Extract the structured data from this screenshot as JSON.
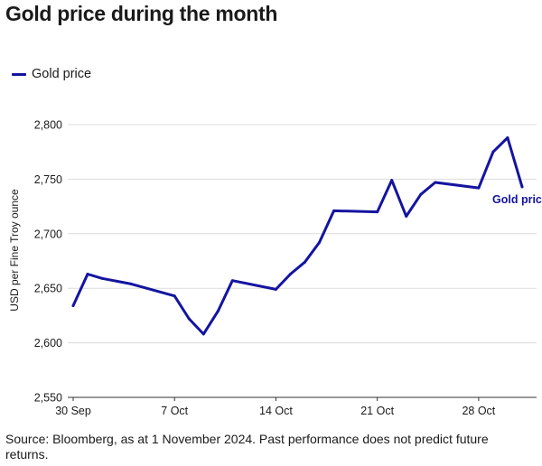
{
  "title": "Gold price during the month",
  "source": "Source: Bloomberg, as at 1 November 2024. Past performance does not predict future returns.",
  "colors": {
    "series": "#1414a0",
    "grid": "#dcdcdc",
    "axis": "#333333",
    "text": "#1a1a1a"
  },
  "chart_data": {
    "type": "line",
    "title": "Gold price during the month",
    "xlabel": "",
    "ylabel": "USD per Fine Troy ounce",
    "ylim": [
      2550,
      2800
    ],
    "yticks": [
      2550,
      2600,
      2650,
      2700,
      2750,
      2800
    ],
    "ytick_labels": [
      "2,550",
      "2,600",
      "2,650",
      "2,700",
      "2,750",
      "2,800"
    ],
    "xlim": [
      "2024-09-30",
      "2024-11-01"
    ],
    "xticks": [
      "2024-09-30",
      "2024-10-07",
      "2024-10-14",
      "2024-10-21",
      "2024-10-28"
    ],
    "xtick_labels": [
      "30 Sep",
      "7 Oct",
      "14 Oct",
      "21 Oct",
      "28 Oct"
    ],
    "grid": true,
    "legend": "top-left",
    "series": [
      {
        "name": "Gold price",
        "end_label": "Gold pric",
        "points": [
          [
            "2024-09-30",
            2634
          ],
          [
            "2024-10-01",
            2663
          ],
          [
            "2024-10-02",
            2659
          ],
          [
            "2024-10-04",
            2654
          ],
          [
            "2024-10-07",
            2643
          ],
          [
            "2024-10-08",
            2622
          ],
          [
            "2024-10-09",
            2608
          ],
          [
            "2024-10-10",
            2629
          ],
          [
            "2024-10-11",
            2657
          ],
          [
            "2024-10-14",
            2649
          ],
          [
            "2024-10-15",
            2663
          ],
          [
            "2024-10-16",
            2674
          ],
          [
            "2024-10-17",
            2692
          ],
          [
            "2024-10-18",
            2721
          ],
          [
            "2024-10-21",
            2720
          ],
          [
            "2024-10-22",
            2749
          ],
          [
            "2024-10-23",
            2716
          ],
          [
            "2024-10-24",
            2736
          ],
          [
            "2024-10-25",
            2747
          ],
          [
            "2024-10-28",
            2742
          ],
          [
            "2024-10-29",
            2775
          ],
          [
            "2024-10-30",
            2788
          ],
          [
            "2024-10-31",
            2743
          ]
        ]
      }
    ]
  }
}
